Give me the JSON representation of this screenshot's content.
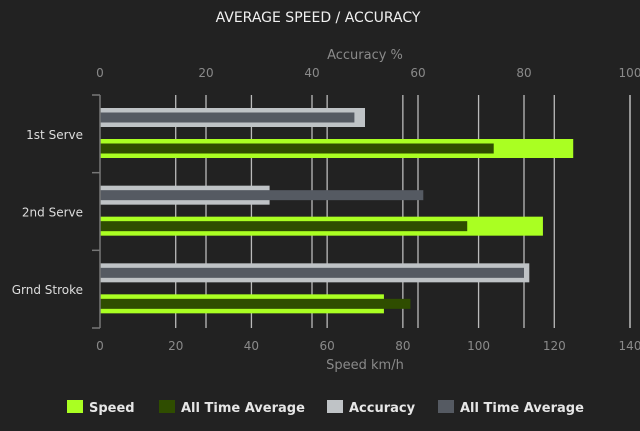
{
  "chart_data": {
    "type": "bar",
    "orientation": "horizontal",
    "title": "AVERAGE SPEED / ACCURACY",
    "categories": [
      "1st Serve",
      "2nd Serve",
      "Grnd Stroke"
    ],
    "x_top": {
      "label": "Accuracy %",
      "range": [
        0,
        100
      ],
      "ticks": [
        0,
        20,
        40,
        60,
        80,
        100
      ]
    },
    "x_bottom": {
      "label": "Speed km/h",
      "range": [
        0,
        140
      ],
      "ticks": [
        0,
        20,
        40,
        60,
        80,
        100,
        120,
        140
      ]
    },
    "series": [
      {
        "name": "Speed",
        "axis": "bottom",
        "color": "#aaff22",
        "values": [
          125,
          117,
          75
        ]
      },
      {
        "name": "All Time Average",
        "axis": "bottom",
        "color": "#2f4d00",
        "values": [
          104,
          97,
          82
        ]
      },
      {
        "name": "Accuracy",
        "axis": "top",
        "color": "#bfc3c6",
        "values": [
          50,
          32,
          81
        ]
      },
      {
        "name": "All Time Average",
        "axis": "top",
        "color": "#555a62",
        "values": [
          48,
          61,
          80
        ]
      }
    ],
    "grid": true,
    "legend": "bottom"
  }
}
